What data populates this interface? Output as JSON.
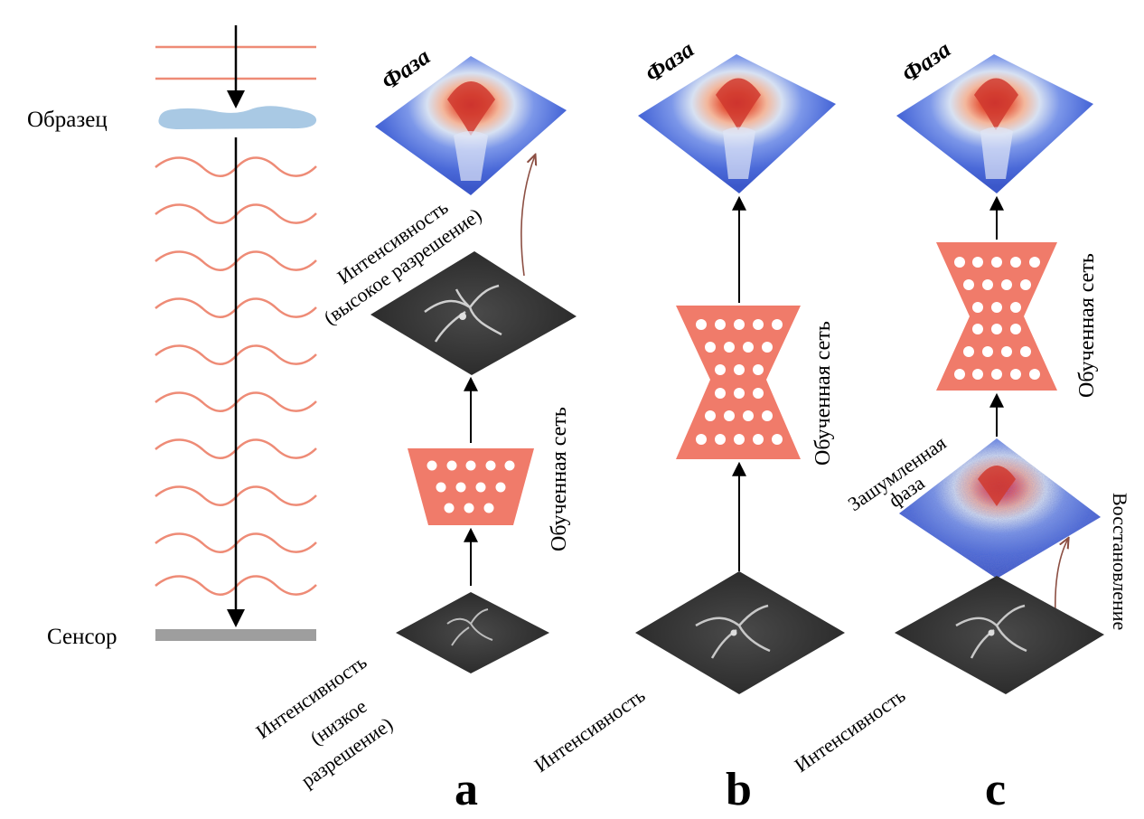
{
  "colors": {
    "wave": "#ee8b76",
    "net": "#f07b6a",
    "sample": "#a9c9e4",
    "sensor": "#9e9e9e",
    "link_arrow": "#8c4f43"
  },
  "labels": {
    "sample": "Образец",
    "sensor": "Сенсор",
    "phase": "Фаза",
    "trained_net": "Обученная сеть",
    "intensity": "Интенсивность",
    "intensity_high_line1": "Интенсивность",
    "intensity_high_line2": "(высокое разрешение)",
    "intensity_low_line1": "Интенсивность",
    "intensity_low_line2": "(низкое",
    "intensity_low_line3": "разрешение)",
    "noisy_phase_line1": "Зашумленная",
    "noisy_phase_line2": "фаза",
    "restoration": "Восстановление",
    "panel_a": "a",
    "panel_b": "b",
    "panel_c": "c"
  }
}
